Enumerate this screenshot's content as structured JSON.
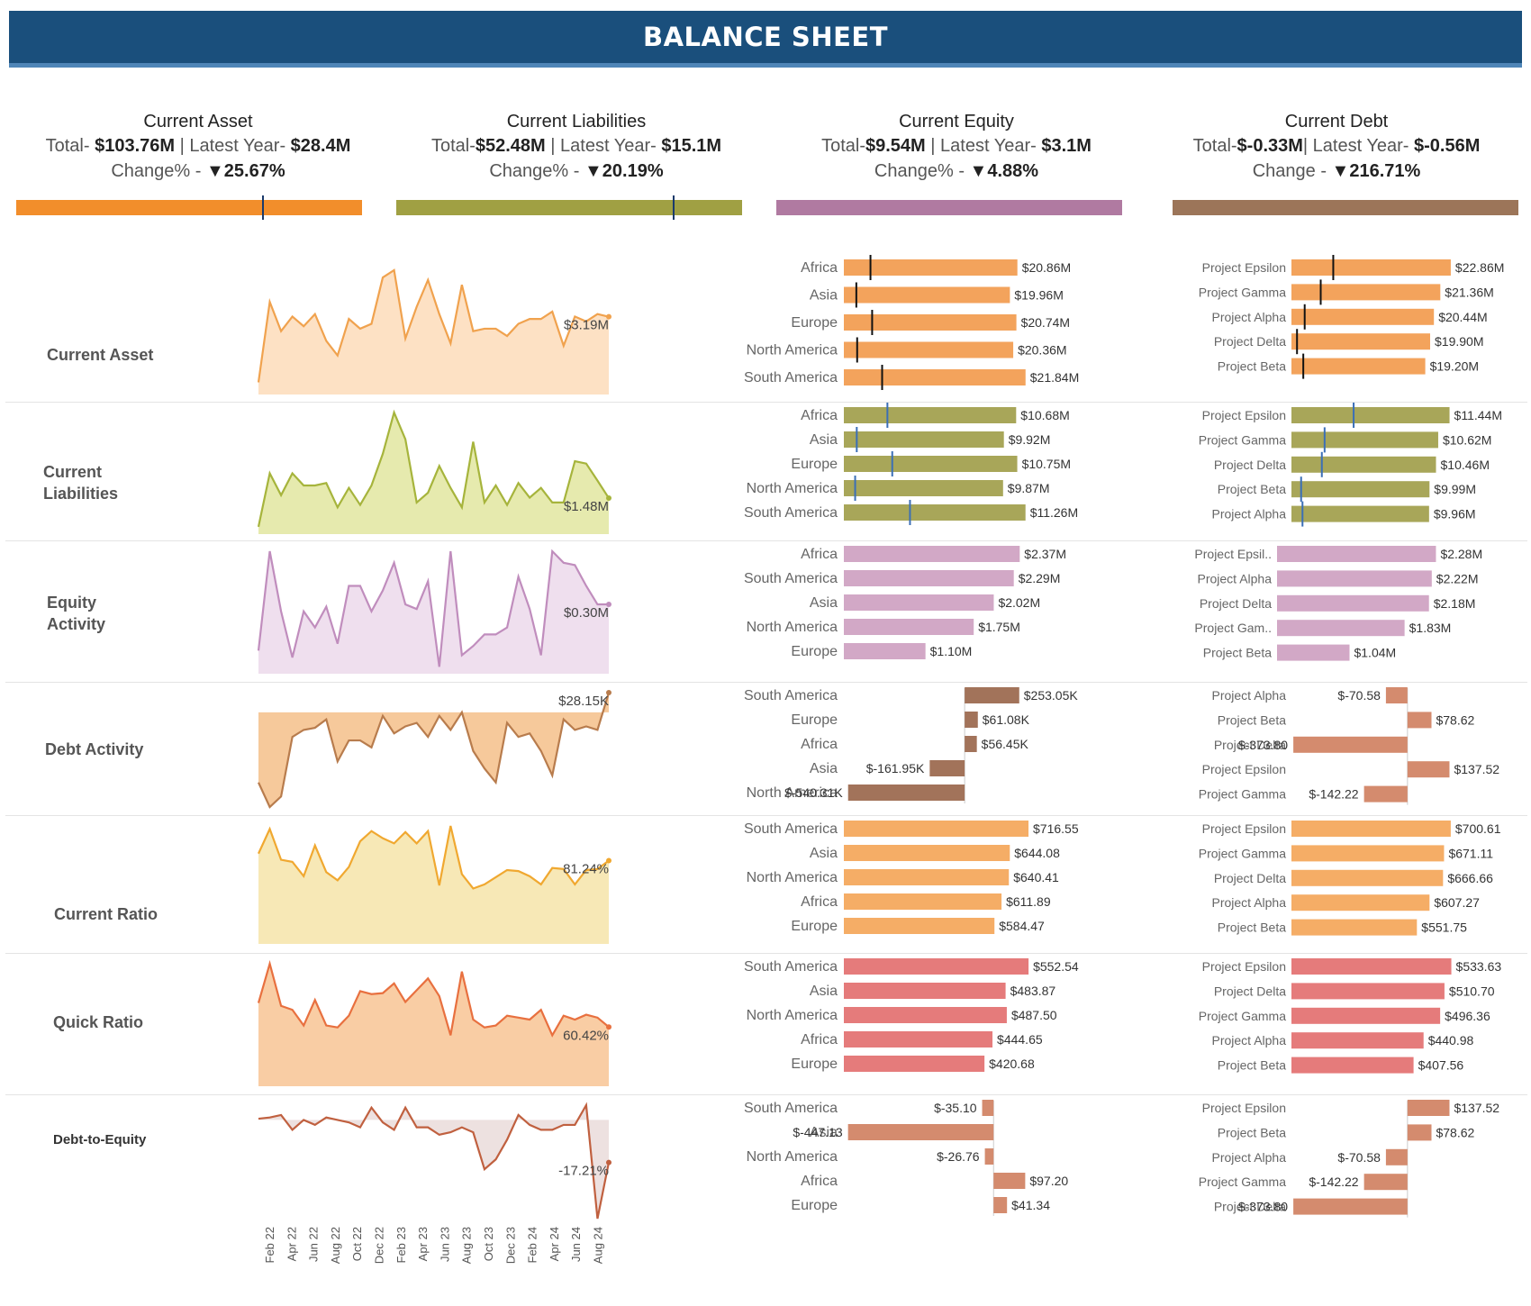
{
  "title": "BALANCE SHEET",
  "kpis": [
    {
      "title": "Current Asset",
      "total_prefix": "Total- ",
      "total": "$103.76M",
      "latest_prefix": " | Latest Year- ",
      "latest": "$28.4M",
      "change_prefix": "Change% - ",
      "change": "▼25.67%",
      "color": "#f28e2b",
      "marker": 0.71
    },
    {
      "title": "Current Liabilities",
      "total_prefix": "Total-",
      "total": "$52.48M",
      "latest_prefix": " | Latest Year- ",
      "latest": "$15.1M",
      "change_prefix": "Change% - ",
      "change": "▼20.19%",
      "color": "#a0a043",
      "marker": 0.8
    },
    {
      "title": "Current Equity",
      "total_prefix": "Total-",
      "total": "$9.54M",
      "latest_prefix": " | Latest Year- ",
      "latest": "$3.1M",
      "change_prefix": "Change% - ",
      "change": "▼4.88%",
      "color": "#b07aa1",
      "marker": null
    },
    {
      "title": "Current Debt",
      "total_prefix": "Total-",
      "total": "$-0.33M",
      "latest_prefix": "| Latest Year- ",
      "latest": "$-0.56M",
      "change_prefix": "Change - ",
      "change": "▼216.71%",
      "color": "#9c7559",
      "marker": null
    }
  ],
  "rows": [
    {
      "label": "Current Asset",
      "fill": "#fde1c4",
      "line": "#f0a24e",
      "end_label": "$3.19M"
    },
    {
      "label": "Current Liabilities",
      "fill": "#e6eaae",
      "line": "#a6b43c",
      "end_label": "$1.48M"
    },
    {
      "label": "Equity Activity",
      "fill": "#efdfee",
      "line": "#c08dbd",
      "end_label": "$0.30M"
    },
    {
      "label": "Debt Activity",
      "fill": "#f6c99b",
      "line": "#b87c4d",
      "end_label": "$28.15K"
    },
    {
      "label": "Current Ratio",
      "fill": "#f7e8b6",
      "line": "#f0a830",
      "end_label": "81.24%"
    },
    {
      "label": "Quick Ratio",
      "fill": "#f9cda4",
      "line": "#e8703f",
      "end_label": "60.42%"
    },
    {
      "label": "Debt-to-Equity",
      "fill": "#ede1e0",
      "line": "#c0603f",
      "end_label": "-17.21%"
    }
  ],
  "x_axis_ticks": [
    "Feb 22",
    "Apr 22",
    "Jun 22",
    "Aug 22",
    "Oct 22",
    "Dec 22",
    "Feb 23",
    "Apr 23",
    "Jun 23",
    "Aug 23",
    "Oct 23",
    "Dec 23",
    "Feb 24",
    "Apr 24",
    "Jun 24",
    "Aug 24"
  ],
  "chart_data": [
    {
      "type": "area",
      "title": "Current Asset",
      "x_start": "Jan 22",
      "x_end": "Sep 24",
      "values": [
        0.5,
        3.8,
        2.6,
        3.2,
        2.8,
        3.3,
        2.2,
        1.6,
        3.1,
        2.7,
        2.9,
        4.8,
        5.1,
        2.3,
        3.6,
        4.7,
        3.3,
        2.1,
        4.5,
        2.6,
        2.7,
        2.7,
        2.4,
        2.9,
        3.1,
        3.1,
        3.4,
        2.0,
        3.2,
        3.0,
        3.3,
        3.19
      ]
    },
    {
      "type": "area",
      "title": "Current Liabilities",
      "x_start": "Jan 22",
      "x_end": "Sep 24",
      "values": [
        0.3,
        2.5,
        1.6,
        2.5,
        2.0,
        2.0,
        2.1,
        1.1,
        1.9,
        1.2,
        2.0,
        3.3,
        5.0,
        3.9,
        1.3,
        1.7,
        2.8,
        1.9,
        1.1,
        3.8,
        1.3,
        2.0,
        1.2,
        2.1,
        1.5,
        1.9,
        1.3,
        1.3,
        3.0,
        2.9,
        2.2,
        1.48
      ]
    },
    {
      "type": "area",
      "title": "Equity Activity",
      "x_start": "Jan 22",
      "x_end": "Sep 24",
      "values": [
        0.1,
        0.53,
        0.27,
        0.07,
        0.27,
        0.2,
        0.29,
        0.13,
        0.38,
        0.38,
        0.27,
        0.36,
        0.48,
        0.3,
        0.28,
        0.4,
        0.03,
        0.53,
        0.08,
        0.12,
        0.17,
        0.17,
        0.2,
        0.42,
        0.28,
        0.08,
        0.53,
        0.48,
        0.47,
        0.38,
        0.3,
        0.3
      ]
    },
    {
      "type": "area",
      "title": "Debt Activity",
      "x_start": "Jan 22",
      "x_end": "Sep 24",
      "values": [
        -100,
        -135,
        -120,
        -35,
        -25,
        -22,
        -10,
        -70,
        -40,
        -40,
        -50,
        -5,
        -30,
        -20,
        -15,
        -35,
        -5,
        -25,
        0,
        -55,
        -80,
        -100,
        -15,
        -35,
        -30,
        -55,
        -90,
        -10,
        -25,
        -20,
        -25,
        28.15
      ]
    },
    {
      "type": "area",
      "title": "Current Ratio",
      "x_start": "Jan 22",
      "x_end": "Sep 24",
      "values": [
        88,
        112,
        82,
        80,
        66,
        96,
        70,
        62,
        75,
        100,
        110,
        103,
        98,
        109,
        98,
        110,
        57,
        115,
        68,
        54,
        58,
        65,
        72,
        71,
        66,
        58,
        74,
        73,
        58,
        72,
        73,
        81.24
      ]
    },
    {
      "type": "area",
      "title": "Quick Ratio",
      "x_start": "Jan 22",
      "x_end": "Sep 24",
      "values": [
        85,
        125,
        82,
        78,
        62,
        88,
        62,
        60,
        72,
        97,
        94,
        95,
        105,
        86,
        98,
        110,
        92,
        52,
        117,
        68,
        60,
        62,
        72,
        70,
        68,
        78,
        52,
        72,
        68,
        73,
        70,
        60.42
      ]
    },
    {
      "type": "area",
      "title": "Debt-to-Equity",
      "x_start": "Jan 22",
      "x_end": "Sep 24",
      "values": [
        0.5,
        1,
        2,
        -4,
        0,
        -2,
        1,
        0,
        -1,
        -3,
        5,
        -1,
        -4,
        5,
        -3,
        -3,
        -6,
        -5,
        -3,
        -5,
        -20,
        -16,
        -8,
        2,
        -2,
        -4,
        -4,
        -2,
        -2,
        6,
        -40,
        -17.21
      ]
    }
  ],
  "region_bars": [
    {
      "color": "#f3a35c",
      "min": 0,
      "max": 22.3,
      "label_x0": 858,
      "width": 200,
      "mark": "#111",
      "items": [
        {
          "name": "Africa",
          "value": 20.86,
          "label": "$20.86M",
          "m": 3.2
        },
        {
          "name": "Asia",
          "value": 19.96,
          "label": "$19.96M",
          "m": 1.5
        },
        {
          "name": "Europe",
          "value": 20.74,
          "label": "$20.74M",
          "m": 3.4
        },
        {
          "name": "North America",
          "value": 20.36,
          "label": "$20.36M",
          "m": 1.6
        },
        {
          "name": "South America",
          "value": 21.84,
          "label": "$21.84M",
          "m": 4.6
        }
      ]
    },
    {
      "color": "#a8a659",
      "min": 0,
      "max": 11.5,
      "label_x0": 858,
      "width": 200,
      "mark": "#3b6fb6",
      "items": [
        {
          "name": "Africa",
          "value": 10.68,
          "label": "$10.68M",
          "m": 2.7
        },
        {
          "name": "Asia",
          "value": 9.92,
          "label": "$9.92M",
          "m": 0.8
        },
        {
          "name": "Europe",
          "value": 10.75,
          "label": "$10.75M",
          "m": 3.0
        },
        {
          "name": "North America",
          "value": 9.87,
          "label": "$9.87M",
          "m": 0.7
        },
        {
          "name": "South America",
          "value": 11.26,
          "label": "$11.26M",
          "m": 4.1
        }
      ]
    },
    {
      "color": "#d2a8c6",
      "min": 0,
      "max": 2.5,
      "label_x0": 858,
      "width": 200,
      "mark": null,
      "items": [
        {
          "name": "Africa",
          "value": 2.37,
          "label": "$2.37M"
        },
        {
          "name": "South America",
          "value": 2.29,
          "label": "$2.29M"
        },
        {
          "name": "Asia",
          "value": 2.02,
          "label": "$2.02M"
        },
        {
          "name": "North America",
          "value": 1.75,
          "label": "$1.75M"
        },
        {
          "name": "Europe",
          "value": 1.1,
          "label": "$1.10M"
        }
      ]
    },
    {
      "color": "#a2735a",
      "min": -560,
      "max": 300,
      "label_x0": 858,
      "width": 200,
      "mark": null,
      "items": [
        {
          "name": "South America",
          "value": 253.05,
          "label": "$253.05K"
        },
        {
          "name": "Europe",
          "value": 61.08,
          "label": "$61.08K"
        },
        {
          "name": "Africa",
          "value": 56.45,
          "label": "$56.45K"
        },
        {
          "name": "Asia",
          "value": -161.95,
          "label": "$-161.95K"
        },
        {
          "name": "North America",
          "value": -540.31,
          "label": "$-540.31K"
        }
      ]
    },
    {
      "color": "#f5ad66",
      "min": 0,
      "max": 720,
      "label_x0": 858,
      "width": 200,
      "mark": null,
      "items": [
        {
          "name": "South America",
          "value": 716.55,
          "label": "$716.55"
        },
        {
          "name": "Asia",
          "value": 644.08,
          "label": "$644.08"
        },
        {
          "name": "North America",
          "value": 640.41,
          "label": "$640.41"
        },
        {
          "name": "Africa",
          "value": 611.89,
          "label": "$611.89"
        },
        {
          "name": "Europe",
          "value": 584.47,
          "label": "$584.47"
        }
      ]
    },
    {
      "color": "#e57b7b",
      "min": 0,
      "max": 555,
      "label_x0": 858,
      "width": 200,
      "mark": null,
      "items": [
        {
          "name": "South America",
          "value": 552.54,
          "label": "$552.54"
        },
        {
          "name": "Asia",
          "value": 483.87,
          "label": "$483.87"
        },
        {
          "name": "North America",
          "value": 487.5,
          "label": "$487.50"
        },
        {
          "name": "Africa",
          "value": 444.65,
          "label": "$444.65"
        },
        {
          "name": "Europe",
          "value": 420.68,
          "label": "$420.68"
        }
      ]
    },
    {
      "color": "#d48b6e",
      "min": -460,
      "max": 110,
      "label_x0": 858,
      "width": 200,
      "mark": null,
      "items": [
        {
          "name": "South America",
          "value": -35.1,
          "label": "$-35.10"
        },
        {
          "name": "Asia",
          "value": -447.13,
          "label": "$-447.13"
        },
        {
          "name": "North America",
          "value": -26.76,
          "label": "$-26.76"
        },
        {
          "name": "Africa",
          "value": 97.2,
          "label": "$97.20"
        },
        {
          "name": "Europe",
          "value": 41.34,
          "label": "$41.34"
        }
      ]
    }
  ],
  "project_bars": [
    {
      "color": "#f3a35c",
      "min": 0,
      "max": 23,
      "mark": "#111",
      "items": [
        {
          "name": "Project Epsilon",
          "value": 22.86,
          "label": "$22.86M",
          "m": 6.0
        },
        {
          "name": "Project Gamma",
          "value": 21.36,
          "label": "$21.36M",
          "m": 4.2
        },
        {
          "name": "Project Alpha",
          "value": 20.44,
          "label": "$20.44M",
          "m": 1.9
        },
        {
          "name": "Project Delta",
          "value": 19.9,
          "label": "$19.90M",
          "m": 0.8
        },
        {
          "name": "Project Beta",
          "value": 19.2,
          "label": "$19.20M",
          "m": 1.7
        }
      ]
    },
    {
      "color": "#a8a659",
      "min": 0,
      "max": 11.6,
      "mark": "#3b6fb6",
      "items": [
        {
          "name": "Project Epsilon",
          "value": 11.44,
          "label": "$11.44M",
          "m": 4.5
        },
        {
          "name": "Project Gamma",
          "value": 10.62,
          "label": "$10.62M",
          "m": 2.4
        },
        {
          "name": "Project Delta",
          "value": 10.46,
          "label": "$10.46M",
          "m": 2.2
        },
        {
          "name": "Project Beta",
          "value": 9.99,
          "label": "$9.99M",
          "m": 0.7
        },
        {
          "name": "Project Alpha",
          "value": 9.96,
          "label": "$9.96M",
          "m": 0.8
        }
      ]
    },
    {
      "color": "#d2a8c6",
      "min": 0,
      "max": 2.3,
      "mark": null,
      "items": [
        {
          "name": "Project Epsil..",
          "value": 2.28,
          "label": "$2.28M"
        },
        {
          "name": "Project Alpha",
          "value": 2.22,
          "label": "$2.22M"
        },
        {
          "name": "Project Delta",
          "value": 2.18,
          "label": "$2.18M"
        },
        {
          "name": "Project Gam..",
          "value": 1.83,
          "label": "$1.83M"
        },
        {
          "name": "Project Beta",
          "value": 1.04,
          "label": "$1.04M"
        }
      ]
    },
    {
      "color": "#d48b6e",
      "min": -380,
      "max": 145,
      "mark": null,
      "items": [
        {
          "name": "Project Alpha",
          "value": -70.58,
          "label": "$-70.58"
        },
        {
          "name": "Project Beta",
          "value": 78.62,
          "label": "$78.62"
        },
        {
          "name": "Project Delta",
          "value": -373.8,
          "label": "$-373.80"
        },
        {
          "name": "Project Epsilon",
          "value": 137.52,
          "label": "$137.52"
        },
        {
          "name": "Project Gamma",
          "value": -142.22,
          "label": "$-142.22"
        }
      ]
    },
    {
      "color": "#f5ad66",
      "min": 0,
      "max": 705,
      "mark": null,
      "items": [
        {
          "name": "Project Epsilon",
          "value": 700.61,
          "label": "$700.61"
        },
        {
          "name": "Project Gamma",
          "value": 671.11,
          "label": "$671.11"
        },
        {
          "name": "Project Delta",
          "value": 666.66,
          "label": "$666.66"
        },
        {
          "name": "Project Alpha",
          "value": 607.27,
          "label": "$607.27"
        },
        {
          "name": "Project Beta",
          "value": 551.75,
          "label": "$551.75"
        }
      ]
    },
    {
      "color": "#e57b7b",
      "min": 0,
      "max": 535,
      "mark": null,
      "items": [
        {
          "name": "Project Epsilon",
          "value": 533.63,
          "label": "$533.63"
        },
        {
          "name": "Project Delta",
          "value": 510.7,
          "label": "$510.70"
        },
        {
          "name": "Project Gamma",
          "value": 496.36,
          "label": "$496.36"
        },
        {
          "name": "Project Alpha",
          "value": 440.98,
          "label": "$440.98"
        },
        {
          "name": "Project Beta",
          "value": 407.56,
          "label": "$407.56"
        }
      ]
    },
    {
      "color": "#d48b6e",
      "min": -380,
      "max": 145,
      "mark": null,
      "items": [
        {
          "name": "Project Epsilon",
          "value": 137.52,
          "label": "$137.52"
        },
        {
          "name": "Project Beta",
          "value": 78.62,
          "label": "$78.62"
        },
        {
          "name": "Project Alpha",
          "value": -70.58,
          "label": "$-70.58"
        },
        {
          "name": "Project Gamma",
          "value": -142.22,
          "label": "$-142.22"
        },
        {
          "name": "Project Delta",
          "value": -373.8,
          "label": "$-373.80"
        }
      ]
    }
  ]
}
